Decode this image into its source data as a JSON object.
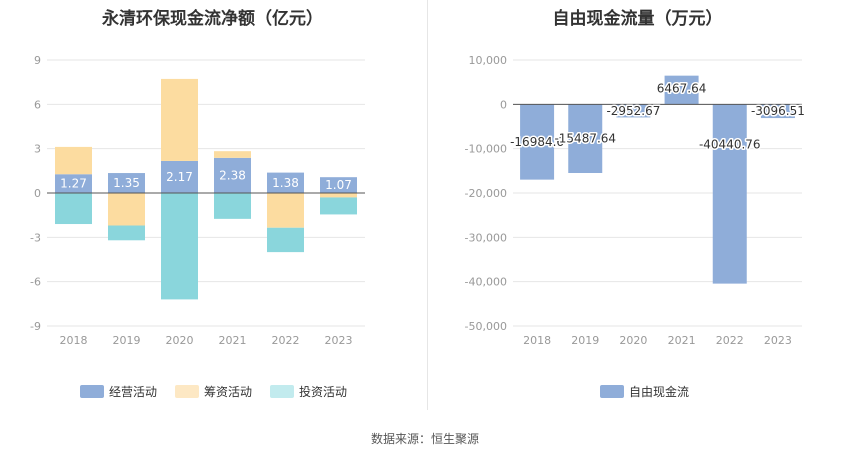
{
  "source_label": "数据来源：恒生聚源",
  "chart_data": [
    {
      "type": "bar",
      "stacked": true,
      "title": "永清环保现金流净额（亿元）",
      "categories": [
        "2018",
        "2019",
        "2020",
        "2021",
        "2022",
        "2023"
      ],
      "ylim": [
        -9,
        9
      ],
      "yticks": [
        9,
        6,
        3,
        0,
        -3,
        -6,
        -9
      ],
      "grid": true,
      "legend_position": "bottom",
      "series": [
        {
          "name": "经营活动",
          "color": "#8fadd9",
          "values": [
            1.27,
            1.35,
            2.17,
            2.38,
            1.38,
            1.07
          ],
          "show_labels": true
        },
        {
          "name": "筹资活动",
          "color": "#fcdca0",
          "values": [
            1.85,
            -2.2,
            5.55,
            0.45,
            -2.35,
            -0.3
          ],
          "show_labels": false
        },
        {
          "name": "投资活动",
          "color": "#8ad6dc",
          "values": [
            -2.1,
            -1.0,
            -7.2,
            -1.75,
            -1.65,
            -1.15
          ],
          "show_labels": false
        }
      ]
    },
    {
      "type": "bar",
      "title": "自由现金流量（万元）",
      "categories": [
        "2018",
        "2019",
        "2020",
        "2021",
        "2022",
        "2023"
      ],
      "ylim": [
        -50000,
        10000
      ],
      "yticks": [
        10000,
        0,
        -10000,
        -20000,
        -30000,
        -40000,
        -50000
      ],
      "ytick_labels": [
        "10,000",
        "0",
        "-10,000",
        "-20,000",
        "-30,000",
        "-40,000",
        "-50,000"
      ],
      "grid": true,
      "legend_position": "bottom",
      "series": [
        {
          "name": "自由现金流",
          "color": "#8fadd9",
          "values": [
            -16984.6,
            -15487.64,
            -2952.67,
            6467.64,
            -40440.76,
            -3096.51
          ],
          "labels": [
            "-16984.6",
            "-15487.64",
            "-2952.67",
            "6467.64",
            "-40440.76",
            "-3096.51"
          ]
        }
      ]
    }
  ]
}
